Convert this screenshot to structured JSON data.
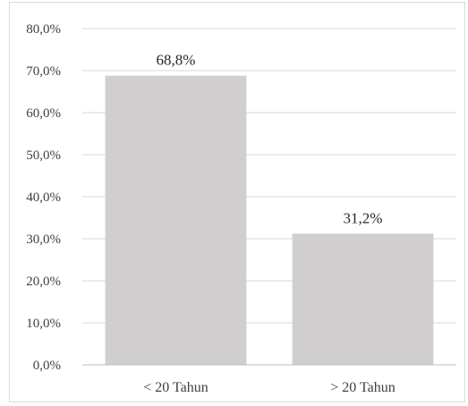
{
  "chart_data": {
    "type": "bar",
    "categories": [
      "< 20 Tahun",
      "> 20 Tahun"
    ],
    "values": [
      68.8,
      31.2
    ],
    "data_labels": [
      "68,8%",
      "31,2%"
    ],
    "title": "",
    "xlabel": "",
    "ylabel": "",
    "ylim": [
      0,
      80
    ],
    "yticks": [
      0,
      10,
      20,
      30,
      40,
      50,
      60,
      70,
      80
    ],
    "ytick_labels": [
      "0,0%",
      "10,0%",
      "20,0%",
      "30,0%",
      "40,0%",
      "50,0%",
      "60,0%",
      "70,0%",
      "80,0%"
    ],
    "grid": true,
    "legend": "none",
    "bar_color": "#d0cece"
  }
}
